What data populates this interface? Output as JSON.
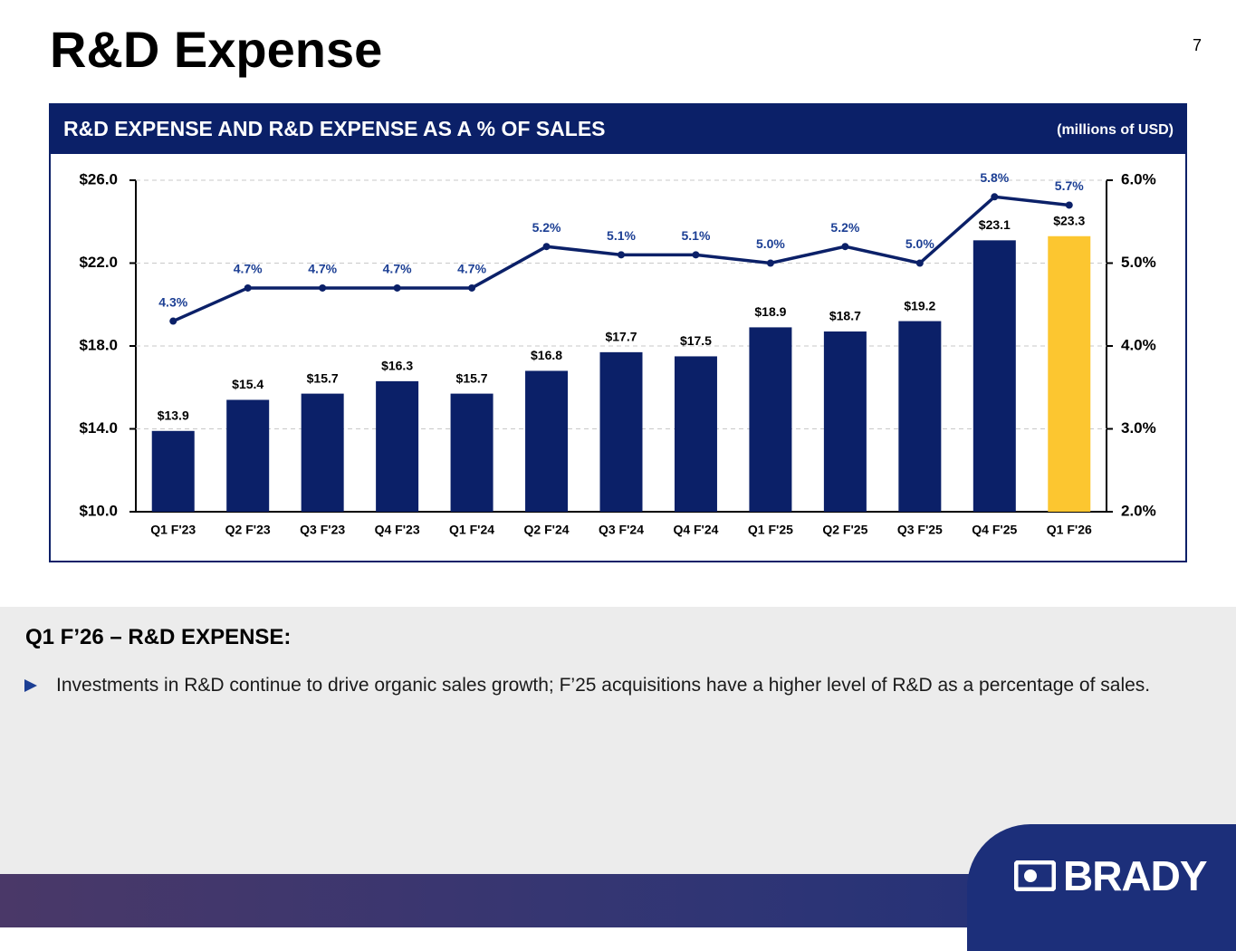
{
  "title": "R&D Expense",
  "page_number": "7",
  "chart_data": {
    "type": "combo",
    "title": "R&D EXPENSE AND R&D EXPENSE AS A % OF SALES",
    "subtitle": "(millions of USD)",
    "categories": [
      "Q1 F'23",
      "Q2 F'23",
      "Q3 F'23",
      "Q4 F'23",
      "Q1 F'24",
      "Q2 F'24",
      "Q3 F'24",
      "Q4 F'24",
      "Q1 F'25",
      "Q2 F'25",
      "Q3 F'25",
      "Q4 F'25",
      "Q1 F'26"
    ],
    "series": [
      {
        "type": "bar",
        "color": "#0b2068",
        "colors": [
          "#0b2068",
          "#0b2068",
          "#0b2068",
          "#0b2068",
          "#0b2068",
          "#0b2068",
          "#0b2068",
          "#0b2068",
          "#0b2068",
          "#0b2068",
          "#0b2068",
          "#0b2068",
          "#fcc630"
        ],
        "values": [
          13.9,
          15.4,
          15.7,
          16.3,
          15.7,
          16.8,
          17.7,
          17.5,
          18.9,
          18.7,
          19.2,
          23.1,
          23.3
        ],
        "value_labels": [
          "$13.9",
          "$15.4",
          "$15.7",
          "$16.3",
          "$15.7",
          "$16.8",
          "$17.7",
          "$17.5",
          "$18.9",
          "$18.7",
          "$19.2",
          "$23.1",
          "$23.3"
        ]
      },
      {
        "type": "line",
        "axis": "y2",
        "color": "#0b2068",
        "values": [
          4.3,
          4.7,
          4.7,
          4.7,
          4.7,
          5.2,
          5.1,
          5.1,
          5.0,
          5.2,
          5.0,
          5.8,
          5.7
        ],
        "value_labels": [
          "4.3%",
          "4.7%",
          "4.7%",
          "4.7%",
          "4.7%",
          "5.2%",
          "5.1%",
          "5.1%",
          "5.0%",
          "5.2%",
          "5.0%",
          "5.8%",
          "5.7%"
        ]
      }
    ],
    "ylim": [
      10,
      26
    ],
    "yticks": [
      {
        "value": 10,
        "label": "$10.0"
      },
      {
        "value": 14,
        "label": "$14.0"
      },
      {
        "value": 18,
        "label": "$18.0"
      },
      {
        "value": 22,
        "label": "$22.0"
      },
      {
        "value": 26,
        "label": "$26.0"
      }
    ],
    "y2lim": [
      2,
      6
    ],
    "y2ticks": [
      {
        "value": 2,
        "label": "2.0%"
      },
      {
        "value": 3,
        "label": "3.0%"
      },
      {
        "value": 4,
        "label": "4.0%"
      },
      {
        "value": 5,
        "label": "5.0%"
      },
      {
        "value": 6,
        "label": "6.0%"
      }
    ],
    "grid": true
  },
  "commentary": {
    "heading": "Q1 F’26 – R&D EXPENSE:",
    "bullets": [
      "Investments in R&D continue to drive organic sales growth; F’25 acquisitions have a higher level of R&D as a percentage of sales."
    ]
  },
  "logo": "BRADY"
}
